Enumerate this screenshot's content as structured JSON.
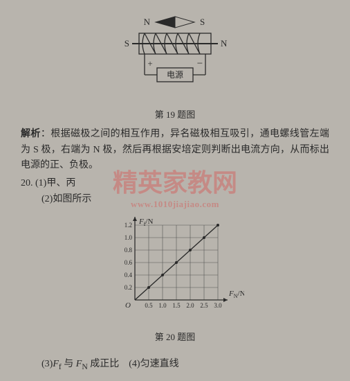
{
  "diagram19": {
    "compass": {
      "left": "N",
      "right": "S"
    },
    "coil": {
      "left_pole": "S",
      "right_pole": "N"
    },
    "battery": {
      "plus": "+",
      "minus": "−",
      "label": "电源"
    },
    "caption": "第 19 题图",
    "colors": {
      "stroke": "#2a2a2a",
      "fill_dark": "#2a2a2a",
      "bg": "#b8b4ad"
    }
  },
  "analysis": {
    "label": "解析",
    "text": "：根据磁极之间的相互作用，异名磁极相互吸引，通电螺线管左端为 S 极，右端为 N 极，然后再根据安培定则判断出电流方向，从而标出电源的正、负极。"
  },
  "q20": {
    "num": "20.",
    "part1": "(1)甲、丙",
    "part2": "(2)如图所示",
    "part3_a": "(3)",
    "part3_b": " 与 ",
    "part3_c": " 成正比",
    "part4": "(4)匀速直线",
    "Ff": "F",
    "Ff_sub": "f",
    "FN": "F",
    "FN_sub": "N"
  },
  "chart": {
    "type": "line",
    "caption": "第 20 题图",
    "ylabel": "F",
    "ylabel_sub": "f",
    "ylabel_unit": "/N",
    "xlabel": "F",
    "xlabel_sub": "N",
    "xlabel_unit": "/N",
    "yticks": [
      "0.2",
      "0.4",
      "0.6",
      "0.8",
      "1.0",
      "1.2"
    ],
    "xticks": [
      "0.5",
      "1.0",
      "1.5",
      "2.0",
      "2.5",
      "3.0"
    ],
    "origin": "O",
    "xlim": [
      0,
      3.0
    ],
    "ylim": [
      0,
      1.2
    ],
    "grid_nx": 6,
    "grid_ny": 6,
    "points": [
      [
        0.5,
        0.2
      ],
      [
        1.0,
        0.4
      ],
      [
        1.5,
        0.6
      ],
      [
        2.0,
        0.8
      ],
      [
        2.5,
        1.0
      ],
      [
        3.0,
        1.2
      ]
    ],
    "colors": {
      "axis": "#2a2a2a",
      "grid": "#555",
      "line": "#2a2a2a",
      "marker": "#2a2a2a",
      "bg": "#b8b4ad",
      "text": "#2a2a2a"
    },
    "font_size_tick": 9,
    "font_size_label": 11,
    "line_width": 1.4,
    "marker_r": 2
  },
  "watermark": {
    "text": "精英家教网",
    "url": "www.1010jiajiao.com"
  }
}
